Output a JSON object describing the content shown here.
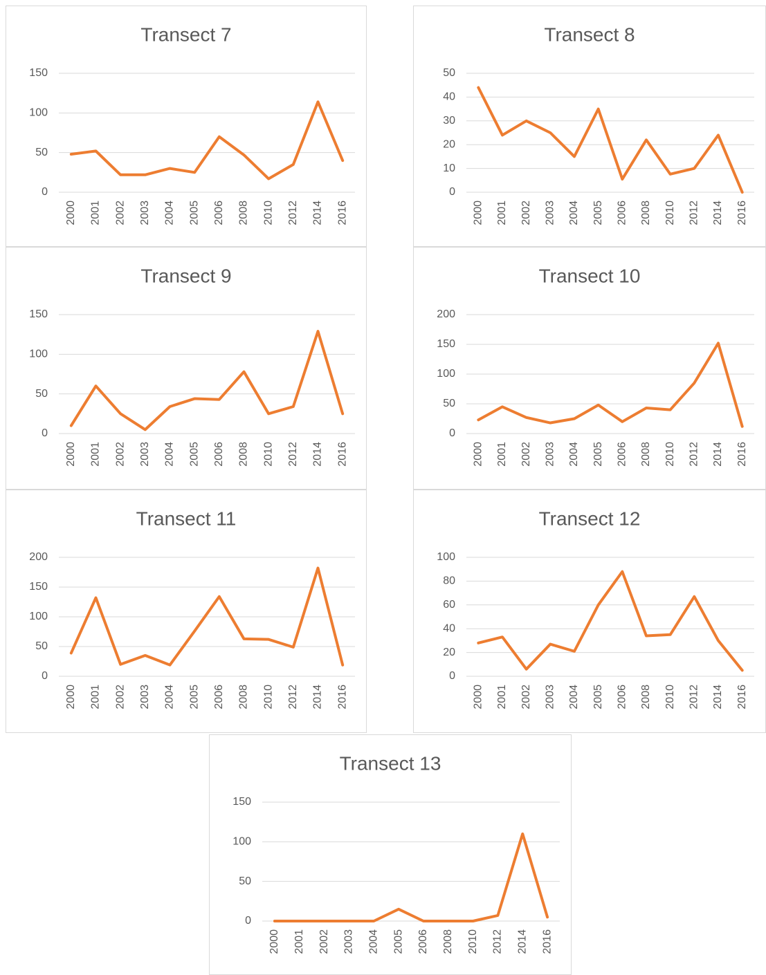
{
  "chart_data": [
    {
      "type": "line",
      "title": "Transect 7",
      "categories": [
        "2000",
        "2001",
        "2002",
        "2003",
        "2004",
        "2005",
        "2006",
        "2008",
        "2010",
        "2012",
        "2014",
        "2016"
      ],
      "values": [
        48,
        52,
        22,
        22,
        30,
        25,
        70,
        47,
        17,
        35,
        114,
        40
      ],
      "color": "#ed7d31",
      "ylim": [
        0,
        150
      ],
      "yticks": [
        0,
        50,
        100,
        150
      ],
      "grid": true
    },
    {
      "type": "line",
      "title": "Transect 8",
      "categories": [
        "2000",
        "2001",
        "2002",
        "2003",
        "2004",
        "2005",
        "2006",
        "2008",
        "2010",
        "2012",
        "2014",
        "2016"
      ],
      "values": [
        44,
        24,
        30,
        25,
        15,
        35,
        5.5,
        22,
        7.6,
        10,
        24,
        0
      ],
      "color": "#ed7d31",
      "ylim": [
        0,
        50
      ],
      "yticks": [
        0,
        10,
        20,
        30,
        40,
        50
      ],
      "grid": true
    },
    {
      "type": "line",
      "title": "Transect 9",
      "categories": [
        "2000",
        "2001",
        "2002",
        "2003",
        "2004",
        "2005",
        "2006",
        "2008",
        "2010",
        "2012",
        "2014",
        "2016"
      ],
      "values": [
        10,
        60,
        25,
        5,
        34,
        44,
        43,
        78,
        25,
        34,
        129,
        25
      ],
      "color": "#ed7d31",
      "ylim": [
        0,
        150
      ],
      "yticks": [
        0,
        50,
        100,
        150
      ],
      "grid": true
    },
    {
      "type": "line",
      "title": "Transect 10",
      "categories": [
        "2000",
        "2001",
        "2002",
        "2003",
        "2004",
        "2005",
        "2006",
        "2008",
        "2010",
        "2012",
        "2014",
        "2016"
      ],
      "values": [
        23,
        45,
        27,
        18,
        25,
        48,
        20,
        43,
        40,
        85,
        152,
        12
      ],
      "color": "#ed7d31",
      "ylim": [
        0,
        200
      ],
      "yticks": [
        0,
        50,
        100,
        150,
        200
      ],
      "grid": true
    },
    {
      "type": "line",
      "title": "Transect 11",
      "categories": [
        "2000",
        "2001",
        "2002",
        "2003",
        "2004",
        "2005",
        "2006",
        "2008",
        "2010",
        "2012",
        "2014",
        "2016"
      ],
      "values": [
        39,
        132,
        20,
        35,
        19,
        76,
        134,
        63,
        62,
        49,
        182,
        19
      ],
      "color": "#ed7d31",
      "ylim": [
        0,
        200
      ],
      "yticks": [
        0,
        50,
        100,
        150,
        200
      ],
      "grid": true
    },
    {
      "type": "line",
      "title": "Transect 12",
      "categories": [
        "2000",
        "2001",
        "2002",
        "2003",
        "2004",
        "2005",
        "2006",
        "2008",
        "2010",
        "2012",
        "2014",
        "2016"
      ],
      "values": [
        28,
        33,
        6,
        27,
        21,
        60,
        88,
        34,
        35,
        67,
        30,
        5
      ],
      "color": "#ed7d31",
      "ylim": [
        0,
        100
      ],
      "yticks": [
        0,
        20,
        40,
        60,
        80,
        100
      ],
      "grid": true
    },
    {
      "type": "line",
      "title": "Transect 13",
      "categories": [
        "2000",
        "2001",
        "2002",
        "2003",
        "2004",
        "2005",
        "2006",
        "2008",
        "2010",
        "2012",
        "2014",
        "2016"
      ],
      "values": [
        0,
        0,
        0,
        0,
        0,
        15,
        0,
        0,
        0,
        7,
        110,
        5
      ],
      "color": "#ed7d31",
      "ylim": [
        0,
        150
      ],
      "yticks": [
        0,
        50,
        100,
        150
      ],
      "grid": true
    }
  ]
}
